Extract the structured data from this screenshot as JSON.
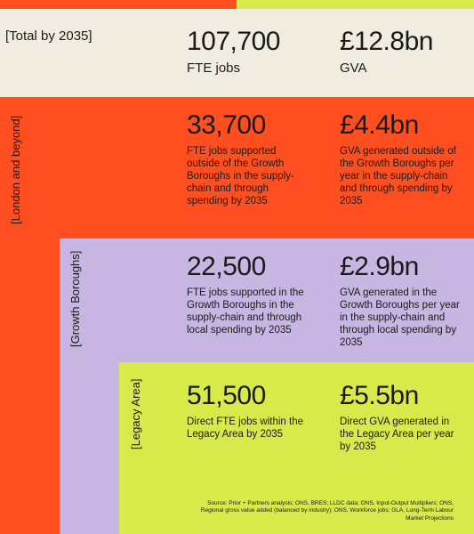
{
  "total": {
    "label": "[Total by 2035]",
    "jobs_value": "107,700",
    "jobs_unit": "FTE jobs",
    "gva_value": "£12.8bn",
    "gva_unit": "GVA"
  },
  "london": {
    "label": "[London and beyond]",
    "jobs_value": "33,700",
    "jobs_desc": "FTE jobs supported outside of the Growth Boroughs in the supply-chain and through spending by 2035",
    "gva_value": "£4.4bn",
    "gva_desc": "GVA generated outside of the Growth Boroughs per year in the supply-chain and through spending by 2035"
  },
  "growth": {
    "label": "[Growth Boroughs]",
    "jobs_value": "22,500",
    "jobs_desc": "FTE jobs supported in the Growth Boroughs in the supply-chain and through local spending by 2035",
    "gva_value": "£2.9bn",
    "gva_desc": "GVA generated in the Growth Boroughs per year in the supply-chain and through local spending by 2035"
  },
  "legacy": {
    "label": "[Legacy Area]",
    "jobs_value": "51,500",
    "jobs_desc": "Direct FTE jobs within the Legacy Area by 2035",
    "gva_value": "£5.5bn",
    "gva_desc": "Direct GVA generated in the Legacy Area per year by 2035"
  },
  "source": "Source: Prior + Partners analysis; ONS, BRES; LLDC data; ONS, Input-Output Multipliers; ONS, Regional gross value added (balanced by industry); ONS, Workforce jobs; GLA, Long-Term Labour Market Projections",
  "colors": {
    "cream": "#f0ece0",
    "orange": "#ff4e1f",
    "lavender": "#c7b6e2",
    "lime": "#d8ea4a",
    "text": "#1a1a1a"
  }
}
